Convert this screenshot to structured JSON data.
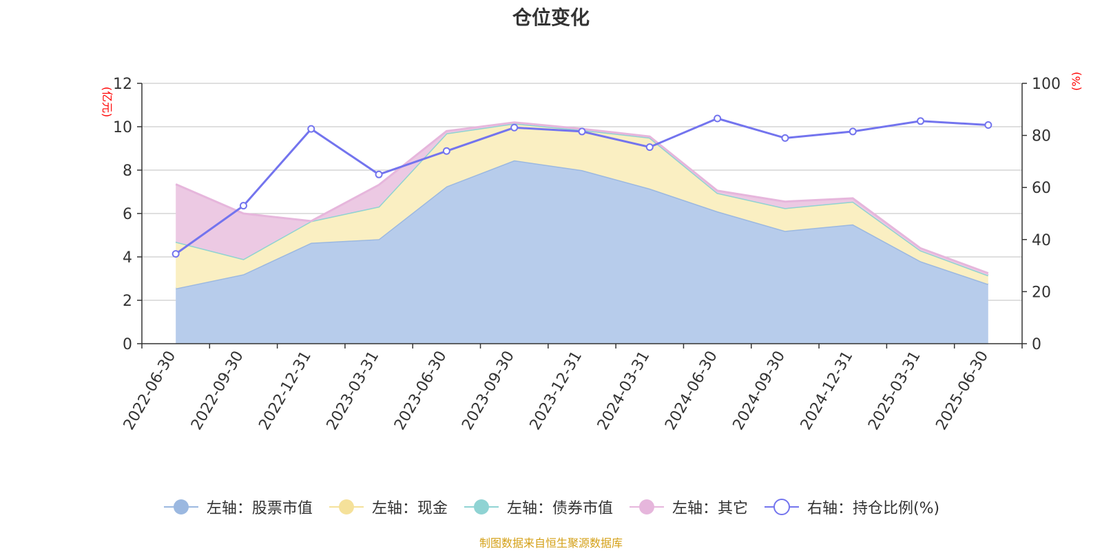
{
  "chart_data": {
    "type": "area",
    "title": "仓位变化",
    "left_unit": "(亿元)",
    "right_unit": "(%)",
    "categories": [
      "2022-06-30",
      "2022-09-30",
      "2022-12-31",
      "2023-03-31",
      "2023-06-30",
      "2023-09-30",
      "2023-12-31",
      "2024-03-31",
      "2024-06-30",
      "2024-09-30",
      "2024-12-31",
      "2025-03-31",
      "2025-06-30"
    ],
    "ylim_left": [
      0,
      12
    ],
    "yticks_left": [
      "0",
      "2",
      "4",
      "6",
      "8",
      "10",
      "12"
    ],
    "ylim_right": [
      0,
      100
    ],
    "yticks_right": [
      "0",
      "20",
      "40",
      "60",
      "80",
      "100"
    ],
    "grid": true,
    "legend_position": "bottom",
    "series": [
      {
        "name": "左轴：股票市值",
        "axis": "left",
        "stack": true,
        "color": "#9bb8e0",
        "fill": "#b7cceb",
        "values": [
          2.55,
          3.2,
          4.65,
          4.82,
          7.25,
          8.45,
          8.0,
          7.15,
          6.1,
          5.2,
          5.5,
          3.8,
          2.75
        ]
      },
      {
        "name": "左轴：现金",
        "axis": "left",
        "stack": true,
        "color": "#f5e19a",
        "fill": "#faefc2",
        "values": [
          2.15,
          0.7,
          1.0,
          1.5,
          2.45,
          1.7,
          1.85,
          2.35,
          0.85,
          1.05,
          1.05,
          0.5,
          0.4
        ]
      },
      {
        "name": "左轴：债券市值",
        "axis": "left",
        "stack": true,
        "color": "#8fd3d3",
        "fill": "#bfe6e6",
        "values": [
          0,
          0,
          0,
          0,
          0,
          0,
          0,
          0,
          0,
          0,
          0,
          0,
          0
        ]
      },
      {
        "name": "左轴：其它",
        "axis": "left",
        "stack": true,
        "color": "#e6b6dc",
        "fill": "#ecc9e3",
        "values": [
          2.65,
          2.1,
          0,
          1.0,
          0.1,
          0.05,
          0.05,
          0.05,
          0.1,
          0.3,
          0.15,
          0.1,
          0.1
        ]
      },
      {
        "name": "右轴：持仓比例(%)",
        "axis": "right",
        "stack": false,
        "color": "#7374ee",
        "values": [
          34.5,
          53.0,
          82.5,
          65.0,
          74.0,
          83.0,
          81.5,
          75.5,
          86.5,
          79.0,
          81.5,
          85.5,
          84.0
        ]
      }
    ]
  },
  "source_note": "制图数据来自恒生聚源数据库"
}
